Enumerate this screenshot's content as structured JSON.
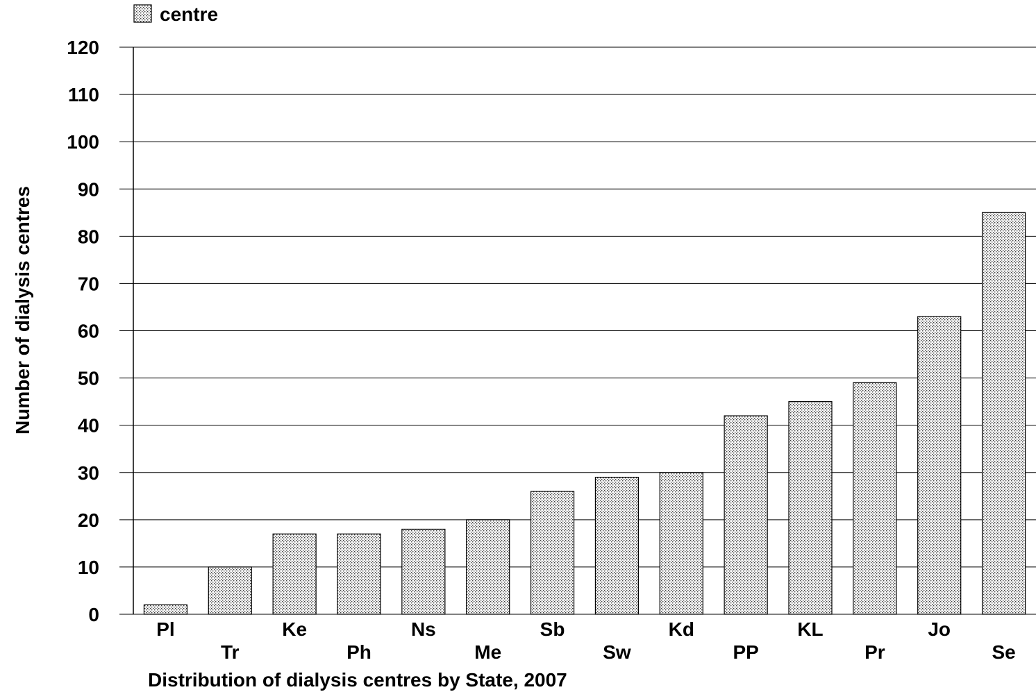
{
  "chart_data": {
    "type": "bar",
    "title": "",
    "xlabel": "Distribution of dialysis centres by State, 2007",
    "ylabel": "Number of dialysis centres",
    "ylim": [
      0,
      120
    ],
    "yticks": [
      0,
      10,
      20,
      30,
      40,
      50,
      60,
      70,
      80,
      90,
      100,
      110,
      120
    ],
    "grid": true,
    "legend": {
      "position": "top-left",
      "entries": [
        "centre"
      ]
    },
    "categories": [
      "Pl",
      "Tr",
      "Ke",
      "Ph",
      "Ns",
      "Me",
      "Sb",
      "Sw",
      "Kd",
      "PP",
      "KL",
      "Pr",
      "Jo",
      "Se"
    ],
    "series": [
      {
        "name": "centre",
        "values": [
          2,
          10,
          17,
          17,
          18,
          20,
          26,
          29,
          30,
          42,
          45,
          49,
          63,
          85
        ]
      }
    ],
    "colors": {
      "bar_fill": "#ffffff",
      "bar_dots": "#3a3a3a",
      "bar_stroke": "#000000",
      "grid": "#000000"
    }
  }
}
